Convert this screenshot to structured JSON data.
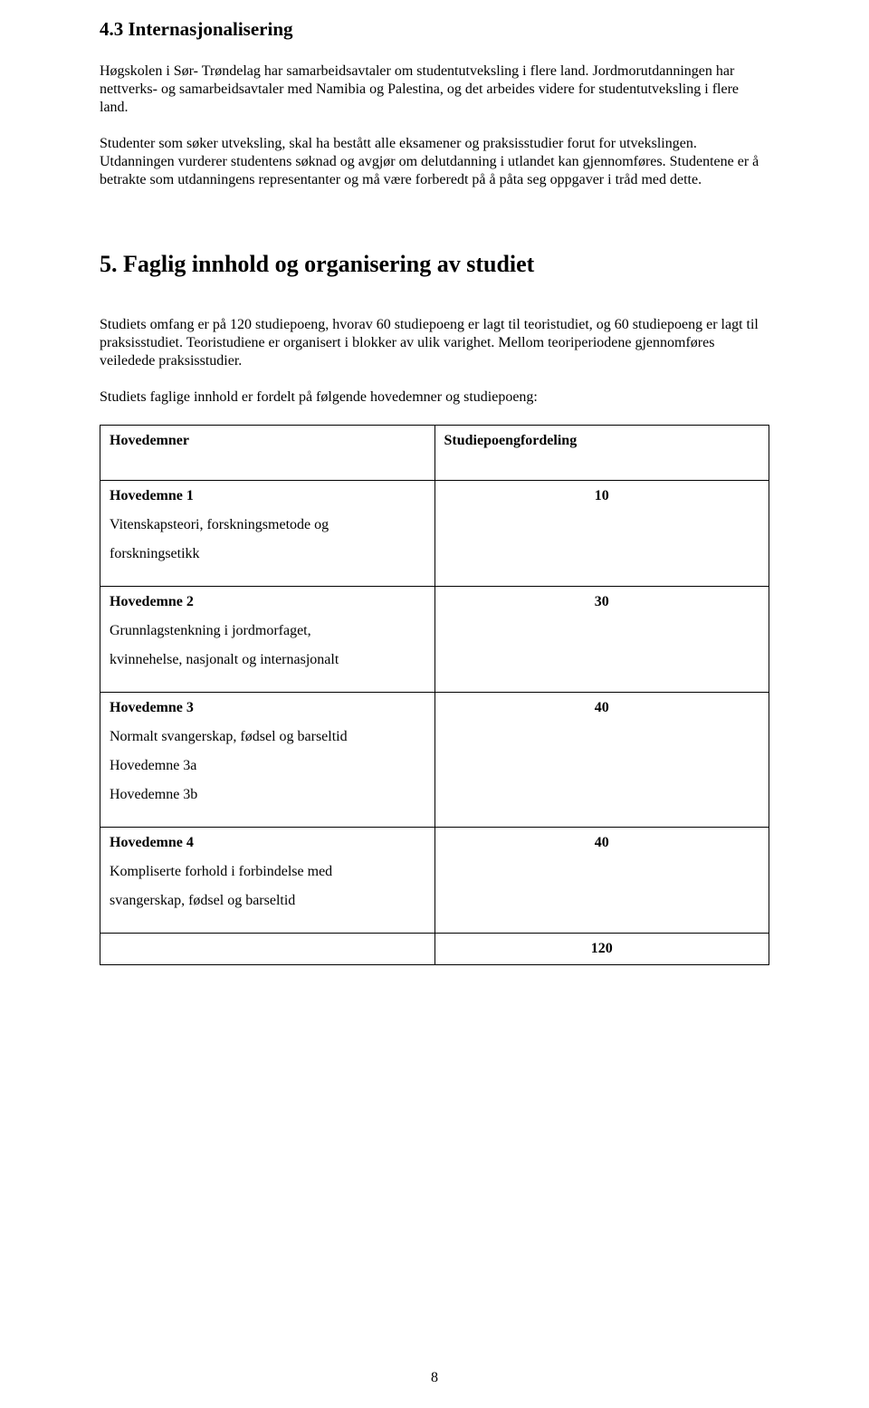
{
  "section43": {
    "heading": "4.3 Internasjonalisering",
    "p1": "Høgskolen i Sør- Trøndelag har samarbeidsavtaler om studentutveksling i flere land. Jordmorutdanningen har nettverks- og samarbeidsavtaler med Namibia og Palestina, og det arbeides videre for studentutveksling i flere land.",
    "p2": "Studenter som søker utveksling, skal ha bestått alle eksamener og praksisstudier forut for utvekslingen. Utdanningen vurderer studentens søknad og avgjør om delutdanning i utlandet kan gjennomføres. Studentene er å betrakte som utdanningens representanter og må være forberedt på å påta seg oppgaver i tråd med dette."
  },
  "section5": {
    "heading": "5. Faglig innhold og organisering av studiet",
    "p1": "Studiets omfang er på 120 studiepoeng, hvorav 60 studiepoeng er lagt til teoristudiet, og 60 studiepoeng er lagt til praksisstudiet. Teoristudiene er organisert i blokker av ulik varighet. Mellom teoriperiodene gjennomføres",
    "p1b": "veiledede praksisstudier.",
    "p2": "Studiets faglige innhold er fordelt på følgende hovedemner og studiepoeng:"
  },
  "table": {
    "header_left": "Hovedemner",
    "header_right": "Studiepoengfordeling",
    "rows": [
      {
        "lines": [
          {
            "text": "Hovedemne 1",
            "bold": true
          },
          {
            "text": "Vitenskapsteori, forskningsmetode og",
            "bold": false
          },
          {
            "text": "forskningsetikk",
            "bold": false
          }
        ],
        "value": "10"
      },
      {
        "lines": [
          {
            "text": "Hovedemne 2",
            "bold": true
          },
          {
            "text": "Grunnlagstenkning i jordmorfaget,",
            "bold": false
          },
          {
            "text": "kvinnehelse, nasjonalt og internasjonalt",
            "bold": false
          }
        ],
        "value": "30"
      },
      {
        "lines": [
          {
            "text": "Hovedemne 3",
            "bold": true
          },
          {
            "text": "Normalt svangerskap, fødsel og barseltid",
            "bold": false
          },
          {
            "text": "Hovedemne 3a",
            "bold": false
          },
          {
            "text": "Hovedemne 3b",
            "bold": false
          }
        ],
        "value": "40"
      },
      {
        "lines": [
          {
            "text": "Hovedemne 4",
            "bold": true
          },
          {
            "text": "Kompliserte forhold i forbindelse med",
            "bold": false
          },
          {
            "text": "svangerskap, fødsel og barseltid",
            "bold": false
          }
        ],
        "value": "40"
      }
    ],
    "total": "120"
  },
  "page_number": "8",
  "colors": {
    "text": "#000000",
    "background": "#ffffff",
    "border": "#000000"
  }
}
